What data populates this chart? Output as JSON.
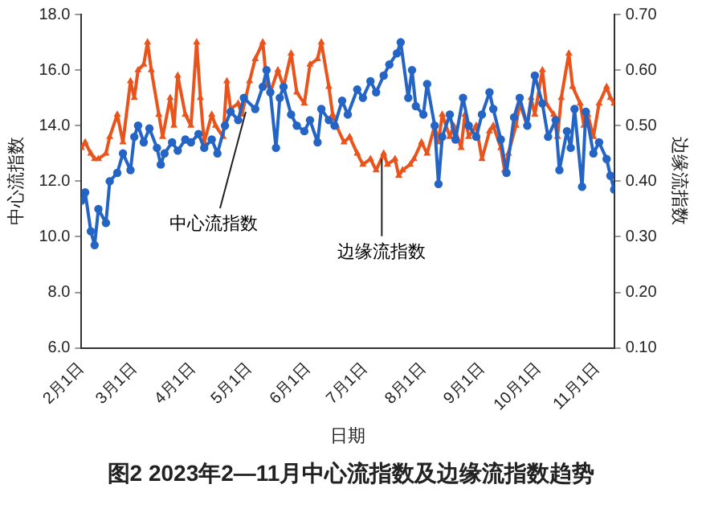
{
  "chart_data": {
    "type": "line",
    "title": "图2 2023年2—11月中心流指数及边缘流指数趋势",
    "xlabel": "日期",
    "ylabel": "中心流指数",
    "y2label": "边缘流指数",
    "xlim": [
      "2023-02-01",
      "2023-11-10"
    ],
    "xticks": [
      {
        "value": "2023-02-01",
        "label": "2月1日"
      },
      {
        "value": "2023-03-01",
        "label": "3月1日"
      },
      {
        "value": "2023-04-01",
        "label": "4月1日"
      },
      {
        "value": "2023-05-01",
        "label": "5月1日"
      },
      {
        "value": "2023-06-01",
        "label": "6月1日"
      },
      {
        "value": "2023-07-01",
        "label": "7月1日"
      },
      {
        "value": "2023-08-01",
        "label": "8月1日"
      },
      {
        "value": "2023-09-01",
        "label": "9月1日"
      },
      {
        "value": "2023-10-01",
        "label": "10月1日"
      },
      {
        "value": "2023-11-01",
        "label": "11月1日"
      }
    ],
    "ylim": [
      6,
      18
    ],
    "yticks": [
      {
        "value": 6,
        "label": "6.0"
      },
      {
        "value": 8,
        "label": "8.0"
      },
      {
        "value": 10,
        "label": "10.0"
      },
      {
        "value": 12,
        "label": "12.0"
      },
      {
        "value": 14,
        "label": "14.0"
      },
      {
        "value": 16,
        "label": "16.0"
      },
      {
        "value": 18,
        "label": "18.0"
      }
    ],
    "y2lim": [
      0.1,
      0.7
    ],
    "y2ticks": [
      {
        "value": 0.1,
        "label": "0.10"
      },
      {
        "value": 0.2,
        "label": "0.20"
      },
      {
        "value": 0.3,
        "label": "0.30"
      },
      {
        "value": 0.4,
        "label": "0.40"
      },
      {
        "value": 0.5,
        "label": "0.50"
      },
      {
        "value": 0.6,
        "label": "0.60"
      },
      {
        "value": 0.7,
        "label": "0.70"
      }
    ],
    "grid": false,
    "legend": false,
    "line_style": "solid",
    "annotations": [
      {
        "text": "中心流指数",
        "x": "2023-04-29",
        "y": 14.5
      },
      {
        "text": "边缘流指数",
        "x": "2023-07-10",
        "y": 12.8
      }
    ],
    "series": [
      {
        "color": "#2464c4",
        "marker": "circle",
        "x": [
          "2023-02-01",
          "2023-02-03",
          "2023-02-06",
          "2023-02-08",
          "2023-02-10",
          "2023-02-14",
          "2023-02-16",
          "2023-02-20",
          "2023-02-23",
          "2023-02-27",
          "2023-03-01",
          "2023-03-03",
          "2023-03-06",
          "2023-03-09",
          "2023-03-13",
          "2023-03-15",
          "2023-03-17",
          "2023-03-21",
          "2023-03-24",
          "2023-03-28",
          "2023-03-31",
          "2023-04-04",
          "2023-04-07",
          "2023-04-11",
          "2023-04-14",
          "2023-04-18",
          "2023-04-21",
          "2023-04-25",
          "2023-04-28",
          "2023-05-04",
          "2023-05-08",
          "2023-05-10",
          "2023-05-12",
          "2023-05-15",
          "2023-05-17",
          "2023-05-19",
          "2023-05-23",
          "2023-05-26",
          "2023-05-30",
          "2023-06-02",
          "2023-06-06",
          "2023-06-08",
          "2023-06-12",
          "2023-06-15",
          "2023-06-19",
          "2023-06-22",
          "2023-06-27",
          "2023-06-30",
          "2023-07-04",
          "2023-07-07",
          "2023-07-11",
          "2023-07-14",
          "2023-07-18",
          "2023-07-20",
          "2023-07-24",
          "2023-07-26",
          "2023-07-28",
          "2023-08-01",
          "2023-08-03",
          "2023-08-07",
          "2023-08-09",
          "2023-08-11",
          "2023-08-15",
          "2023-08-18",
          "2023-08-22",
          "2023-08-25",
          "2023-08-29",
          "2023-09-01",
          "2023-09-05",
          "2023-09-07",
          "2023-09-11",
          "2023-09-14",
          "2023-09-18",
          "2023-09-21",
          "2023-09-25",
          "2023-09-29",
          "2023-10-03",
          "2023-10-06",
          "2023-10-10",
          "2023-10-12",
          "2023-10-16",
          "2023-10-18",
          "2023-10-20",
          "2023-10-24",
          "2023-10-26",
          "2023-10-30",
          "2023-11-02",
          "2023-11-06",
          "2023-11-08",
          "2023-11-10"
        ],
        "values": [
          11.3,
          11.6,
          10.2,
          9.7,
          11.0,
          10.5,
          12.0,
          12.3,
          13.0,
          12.4,
          13.6,
          14.0,
          13.4,
          13.9,
          13.2,
          12.6,
          13.0,
          13.4,
          13.1,
          13.5,
          13.4,
          13.7,
          13.2,
          13.5,
          13.0,
          14.0,
          14.5,
          14.2,
          15.0,
          14.6,
          15.4,
          16.0,
          15.2,
          13.2,
          15.0,
          15.4,
          14.4,
          14.0,
          13.8,
          14.2,
          13.4,
          14.6,
          14.2,
          14.0,
          14.9,
          14.4,
          15.3,
          15.0,
          15.6,
          15.2,
          15.8,
          16.2,
          16.6,
          17.0,
          15.0,
          16.0,
          14.7,
          14.4,
          15.5,
          14.0,
          11.9,
          13.6,
          14.4,
          13.5,
          15.0,
          14.0,
          13.6,
          14.4,
          15.2,
          14.6,
          13.5,
          12.3,
          14.3,
          15.0,
          14.0,
          15.8,
          14.8,
          13.6,
          14.2,
          12.4,
          13.8,
          13.2,
          14.6,
          11.8,
          14.5,
          13.0,
          13.4,
          12.8,
          12.2,
          11.7
        ]
      },
      {
        "color": "#e8541c",
        "marker": "triangle",
        "axis": "y2",
        "x": [
          "2023-02-01",
          "2023-02-03",
          "2023-02-06",
          "2023-02-08",
          "2023-02-10",
          "2023-02-14",
          "2023-02-16",
          "2023-02-20",
          "2023-02-23",
          "2023-02-27",
          "2023-03-01",
          "2023-03-03",
          "2023-03-06",
          "2023-03-08",
          "2023-03-10",
          "2023-03-14",
          "2023-03-16",
          "2023-03-20",
          "2023-03-22",
          "2023-03-24",
          "2023-03-28",
          "2023-03-31",
          "2023-04-03",
          "2023-04-05",
          "2023-04-07",
          "2023-04-11",
          "2023-04-13",
          "2023-04-17",
          "2023-04-19",
          "2023-04-21",
          "2023-04-25",
          "2023-04-27",
          "2023-05-01",
          "2023-05-04",
          "2023-05-08",
          "2023-05-10",
          "2023-05-12",
          "2023-05-16",
          "2023-05-19",
          "2023-05-23",
          "2023-05-26",
          "2023-05-30",
          "2023-06-02",
          "2023-06-06",
          "2023-06-08",
          "2023-06-12",
          "2023-06-14",
          "2023-06-16",
          "2023-06-20",
          "2023-06-23",
          "2023-06-27",
          "2023-06-30",
          "2023-07-04",
          "2023-07-07",
          "2023-07-11",
          "2023-07-13",
          "2023-07-17",
          "2023-07-19",
          "2023-07-21",
          "2023-07-25",
          "2023-07-27",
          "2023-07-31",
          "2023-08-03",
          "2023-08-07",
          "2023-08-09",
          "2023-08-11",
          "2023-08-15",
          "2023-08-17",
          "2023-08-21",
          "2023-08-23",
          "2023-08-25",
          "2023-08-29",
          "2023-09-01",
          "2023-09-05",
          "2023-09-07",
          "2023-09-11",
          "2023-09-13",
          "2023-09-15",
          "2023-09-19",
          "2023-09-21",
          "2023-09-25",
          "2023-09-27",
          "2023-09-29",
          "2023-10-03",
          "2023-10-05",
          "2023-10-09",
          "2023-10-11",
          "2023-10-13",
          "2023-10-17",
          "2023-10-19",
          "2023-10-23",
          "2023-10-25",
          "2023-10-27",
          "2023-10-30",
          "2023-11-02",
          "2023-11-06",
          "2023-11-08",
          "2023-11-10"
        ],
        "values": [
          0.46,
          0.47,
          0.45,
          0.44,
          0.44,
          0.45,
          0.48,
          0.52,
          0.47,
          0.58,
          0.55,
          0.6,
          0.61,
          0.65,
          0.6,
          0.52,
          0.48,
          0.55,
          0.5,
          0.59,
          0.52,
          0.5,
          0.65,
          0.55,
          0.47,
          0.52,
          0.5,
          0.48,
          0.58,
          0.53,
          0.54,
          0.52,
          0.58,
          0.62,
          0.65,
          0.58,
          0.56,
          0.6,
          0.57,
          0.63,
          0.56,
          0.54,
          0.61,
          0.62,
          0.65,
          0.57,
          0.52,
          0.5,
          0.47,
          0.48,
          0.45,
          0.43,
          0.44,
          0.42,
          0.45,
          0.43,
          0.44,
          0.41,
          0.42,
          0.43,
          0.44,
          0.47,
          0.45,
          0.5,
          0.47,
          0.52,
          0.48,
          0.5,
          0.46,
          0.52,
          0.48,
          0.5,
          0.44,
          0.49,
          0.5,
          0.46,
          0.42,
          0.45,
          0.5,
          0.54,
          0.5,
          0.55,
          0.52,
          0.6,
          0.54,
          0.52,
          0.48,
          0.55,
          0.63,
          0.57,
          0.54,
          0.5,
          0.52,
          0.48,
          0.54,
          0.57,
          0.55,
          0.54
        ]
      }
    ]
  }
}
